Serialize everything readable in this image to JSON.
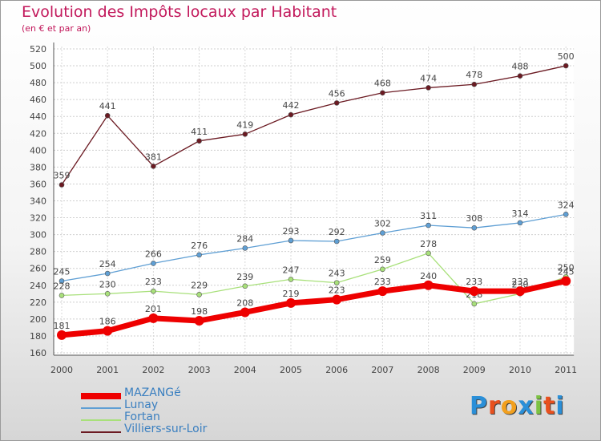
{
  "header": {
    "title": "Evolution des Impôts locaux par Habitant",
    "subtitle": "(en € et par an)"
  },
  "chart_data": {
    "type": "line",
    "title": "Evolution des Impôts locaux par Habitant",
    "subtitle": "(en € et par an)",
    "xlabel": "",
    "ylabel": "",
    "categories": [
      "2000",
      "2001",
      "2002",
      "2003",
      "2004",
      "2005",
      "2006",
      "2007",
      "2008",
      "2009",
      "2010",
      "2011"
    ],
    "ylim": [
      160,
      520
    ],
    "yticks": [
      160,
      180,
      200,
      220,
      240,
      260,
      280,
      300,
      320,
      340,
      360,
      380,
      400,
      420,
      440,
      460,
      480,
      500,
      520
    ],
    "grid": true,
    "legend_position": "bottom-left",
    "series": [
      {
        "name": "Villiers-sur-Loir",
        "color": "#6b1a22",
        "values": [
          359,
          441,
          381,
          411,
          419,
          442,
          456,
          468,
          474,
          478,
          488,
          500
        ]
      },
      {
        "name": "Lunay",
        "color": "#5f9fd4",
        "values": [
          245,
          254,
          266,
          276,
          284,
          293,
          292,
          302,
          311,
          308,
          314,
          324
        ]
      },
      {
        "name": "Fortan",
        "color": "#a8e07a",
        "values": [
          228,
          230,
          233,
          229,
          239,
          247,
          243,
          259,
          278,
          218,
          230,
          250
        ]
      },
      {
        "name": "MAZANGé",
        "color": "#ee0000",
        "values": [
          181,
          186,
          201,
          198,
          208,
          219,
          223,
          233,
          240,
          233,
          233,
          245
        ]
      }
    ]
  },
  "legend": {
    "items": [
      {
        "label": "MAZANGé",
        "color": "#ee0000"
      },
      {
        "label": "Lunay",
        "color": "#5f9fd4"
      },
      {
        "label": "Fortan",
        "color": "#a8e07a"
      },
      {
        "label": "Villiers-sur-Loir",
        "color": "#6b1a22"
      }
    ]
  },
  "logo": {
    "text": "Proxiti",
    "colors": [
      "#2a8fd8",
      "#e8501e",
      "#f2a01e",
      "#2a8fd8",
      "#7cc242",
      "#e8501e",
      "#2a8fd8"
    ]
  }
}
